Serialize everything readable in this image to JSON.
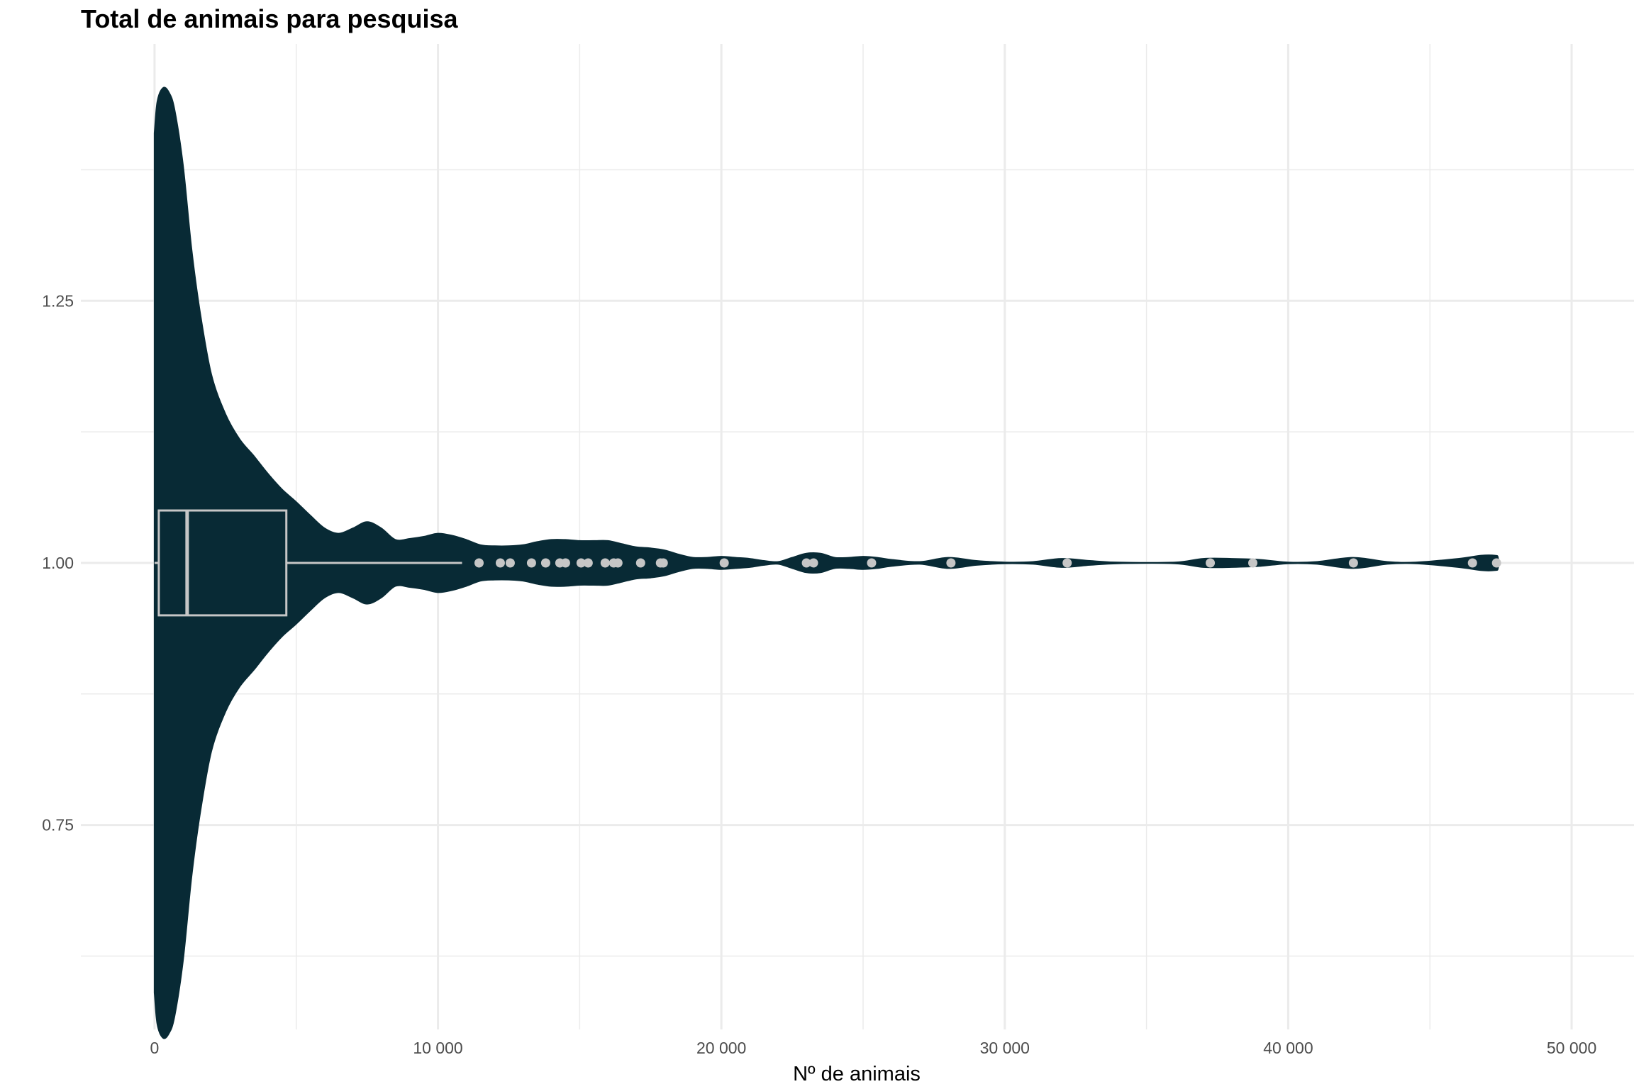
{
  "chart_data": {
    "type": "violin",
    "title": "Total de animais para pesquisa",
    "xlabel": "Nº de animais",
    "ylabel": "",
    "xlim": [
      -2600,
      52200
    ],
    "ylim": [
      0.555,
      1.495
    ],
    "x_ticks": [
      0,
      10000,
      20000,
      30000,
      40000,
      50000
    ],
    "x_tick_labels": [
      "0",
      "10 000",
      "20 000",
      "30 000",
      "40 000",
      "50 000"
    ],
    "y_ticks": [
      0.75,
      1.0,
      1.25
    ],
    "y_tick_labels": [
      "0.75",
      "1.00",
      "1.25"
    ],
    "grid": true,
    "colors": {
      "violin_fill": "#082a35",
      "box_and_points": "#c6c6c6",
      "grid": "#ebebeb",
      "tick_text": "#4d4d4d"
    },
    "boxplot": {
      "whisker_low": 0,
      "q1": 150,
      "median": 1150,
      "q3": 4650,
      "whisker_high": 10850,
      "box_ymin": 0.95,
      "box_ymax": 1.05,
      "y": 1.0
    },
    "outliers": [
      11450,
      12200,
      12550,
      13300,
      13800,
      14300,
      14500,
      15050,
      15300,
      15900,
      16200,
      16350,
      17150,
      17850,
      17950,
      20100,
      23000,
      23250,
      25300,
      28100,
      32200,
      37250,
      38750,
      42300,
      46500,
      47350
    ],
    "violin_halfwidth": [
      [
        0,
        0.41
      ],
      [
        100,
        0.44
      ],
      [
        300,
        0.453
      ],
      [
        500,
        0.449
      ],
      [
        700,
        0.433
      ],
      [
        1000,
        0.38
      ],
      [
        1300,
        0.3
      ],
      [
        1600,
        0.24
      ],
      [
        2000,
        0.18
      ],
      [
        2500,
        0.142
      ],
      [
        3000,
        0.118
      ],
      [
        3500,
        0.102
      ],
      [
        4000,
        0.085
      ],
      [
        4500,
        0.07
      ],
      [
        5000,
        0.058
      ],
      [
        5500,
        0.045
      ],
      [
        6000,
        0.033
      ],
      [
        6500,
        0.028
      ],
      [
        7000,
        0.033
      ],
      [
        7500,
        0.039
      ],
      [
        8000,
        0.033
      ],
      [
        8500,
        0.022
      ],
      [
        9000,
        0.023
      ],
      [
        9500,
        0.025
      ],
      [
        10000,
        0.028
      ],
      [
        10500,
        0.026
      ],
      [
        11000,
        0.022
      ],
      [
        11500,
        0.017
      ],
      [
        12000,
        0.016
      ],
      [
        12500,
        0.016
      ],
      [
        13000,
        0.017
      ],
      [
        13500,
        0.02
      ],
      [
        14000,
        0.022
      ],
      [
        14500,
        0.022
      ],
      [
        15000,
        0.021
      ],
      [
        15500,
        0.021
      ],
      [
        16000,
        0.021
      ],
      [
        16500,
        0.018
      ],
      [
        17000,
        0.015
      ],
      [
        17500,
        0.014
      ],
      [
        18000,
        0.012
      ],
      [
        18500,
        0.008
      ],
      [
        19000,
        0.005
      ],
      [
        19500,
        0.005
      ],
      [
        20000,
        0.006
      ],
      [
        20500,
        0.005
      ],
      [
        21000,
        0.004
      ],
      [
        21500,
        0.002
      ],
      [
        22000,
        0.001
      ],
      [
        22500,
        0.005
      ],
      [
        23000,
        0.009
      ],
      [
        23500,
        0.009
      ],
      [
        24000,
        0.005
      ],
      [
        24500,
        0.005
      ],
      [
        25000,
        0.006
      ],
      [
        25500,
        0.005
      ],
      [
        26000,
        0.003
      ],
      [
        27000,
        0.001
      ],
      [
        28000,
        0.005
      ],
      [
        29000,
        0.002
      ],
      [
        30000,
        0.0005
      ],
      [
        31000,
        0.001
      ],
      [
        32000,
        0.004
      ],
      [
        33000,
        0.002
      ],
      [
        34000,
        0.0005
      ],
      [
        36000,
        0.0005
      ],
      [
        37000,
        0.004
      ],
      [
        38000,
        0.004
      ],
      [
        39000,
        0.003
      ],
      [
        40000,
        0.0005
      ],
      [
        41000,
        0.001
      ],
      [
        42300,
        0.005
      ],
      [
        43500,
        0.001
      ],
      [
        44500,
        0.0005
      ],
      [
        46000,
        0.004
      ],
      [
        46800,
        0.007
      ],
      [
        47300,
        0.007
      ],
      [
        47400,
        0.005
      ]
    ]
  }
}
